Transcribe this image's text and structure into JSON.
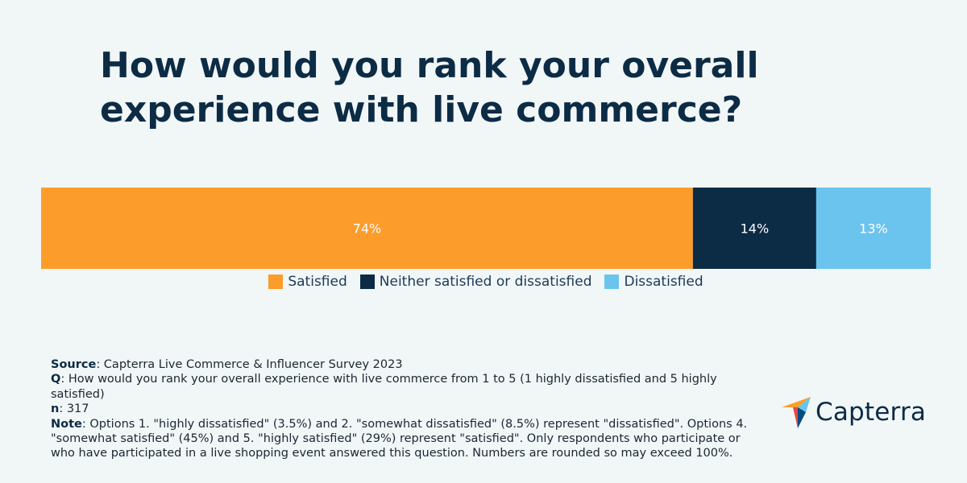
{
  "title_lines": [
    "How would you rank your overall",
    "experience with live commerce?"
  ],
  "chart_data": {
    "type": "bar",
    "orientation": "horizontal-stacked",
    "categories": [
      "Satisfied",
      "Neither satisfied or dissatisfied",
      "Dissatisfied"
    ],
    "values": [
      74,
      14,
      13
    ],
    "labels": [
      "74%",
      "14%",
      "13%"
    ],
    "colors": [
      "#fc9c2b",
      "#0c2b45",
      "#6bc4ee"
    ],
    "label_colors": [
      "#ffffff",
      "#ffffff",
      "#ffffff"
    ],
    "title": "How would you rank your overall experience with live commerce?",
    "unit": "%"
  },
  "legend": [
    {
      "label": "Satisfied",
      "color": "#fc9c2b"
    },
    {
      "label": "Neither satisfied or dissatisfied",
      "color": "#0c2b45"
    },
    {
      "label": "Dissatisfied",
      "color": "#6bc4ee"
    }
  ],
  "footer": {
    "source_label": "Source",
    "source_text": ": Capterra Live Commerce & Influencer Survey 2023",
    "q_label": "Q",
    "q_text": ": How would you rank your overall experience with live commerce from 1 to 5 (1 highly dissatisfied and 5 highly satisfied)",
    "n_label": "n",
    "n_text": ": 317",
    "note_label": "Note",
    "note_text": ": Options 1. \"highly dissatisfied\" (3.5%) and 2. \"somewhat dissatisfied\" (8.5%) represent \"dissatisfied\". Options 4. \"somewhat satisfied\" (45%) and 5. \"highly satisfied\" (29%) represent \"satisfied\". Only respondents who participate or who have participated in a live shopping event answered this question. Numbers are rounded so may exceed 100%."
  },
  "logo": {
    "text": "Capterra",
    "icon": "capterra-arrow-icon",
    "colors": [
      "#ff9d28",
      "#68c5ed",
      "#044d80",
      "#e54747"
    ]
  }
}
